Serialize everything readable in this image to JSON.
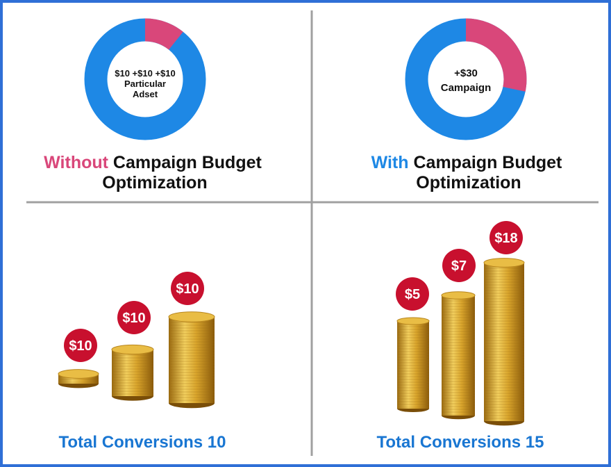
{
  "panels": [
    {
      "donut_center": [
        "$10 +$10 +$10",
        "Particular",
        "Adset"
      ],
      "heading_highlight": "Without",
      "heading_rest": "Campaign Budget",
      "heading_line2": "Optimization"
    },
    {
      "donut_center": [
        "+$30",
        "Campaign"
      ],
      "heading_highlight": "With",
      "heading_rest": "Campaign Budget",
      "heading_line2": "Optimization"
    }
  ],
  "bottom": [
    {
      "badges": [
        "$10",
        "$10",
        "$10"
      ],
      "total": "Total Conversions 10"
    },
    {
      "badges": [
        "$5",
        "$7",
        "$18"
      ],
      "total": "Total Conversions 15"
    }
  ]
}
